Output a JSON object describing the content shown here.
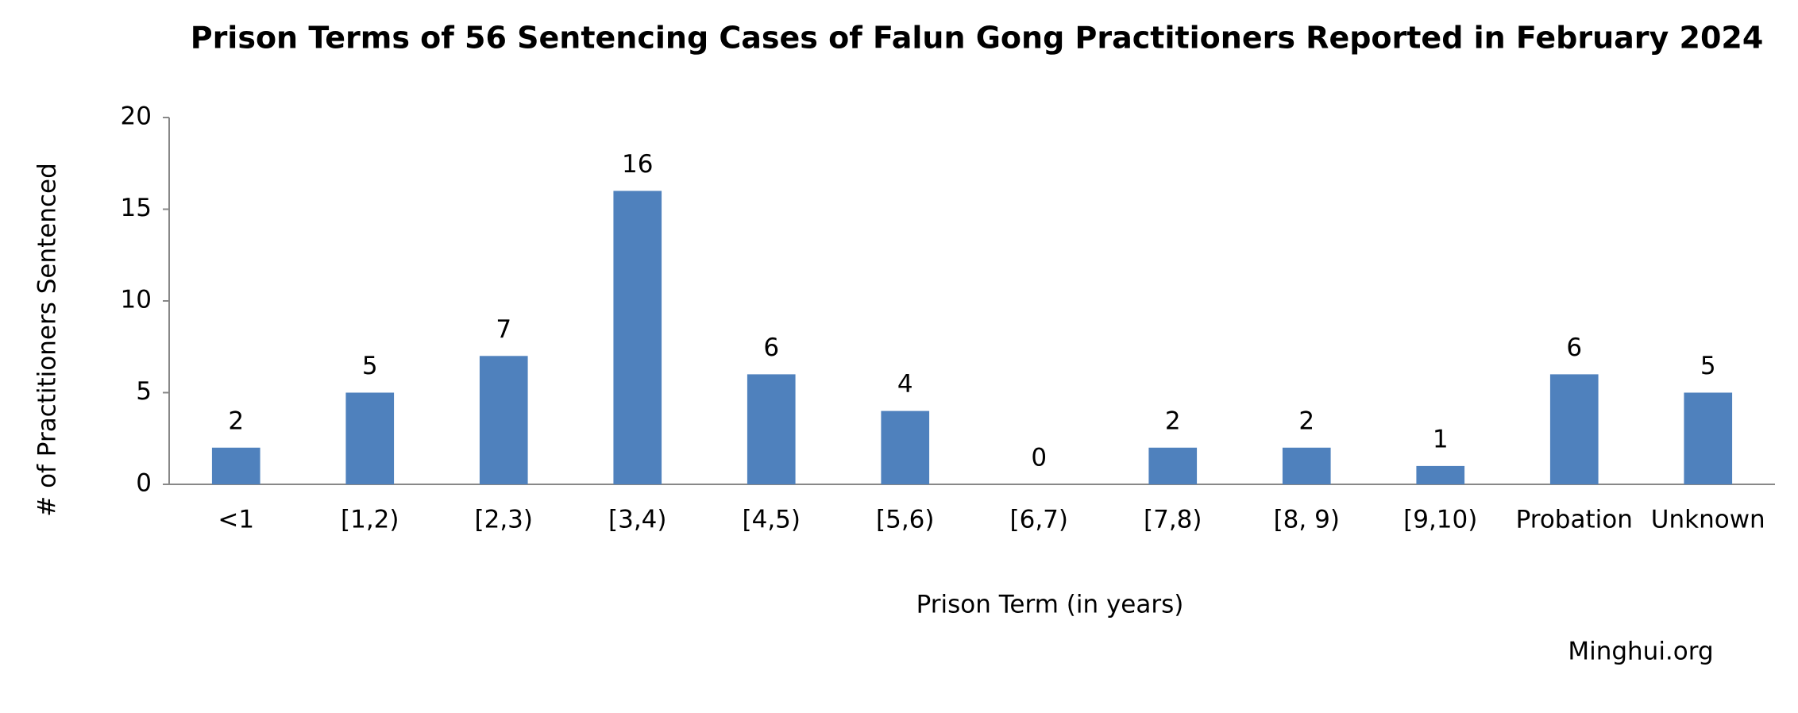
{
  "chart_data": {
    "type": "bar",
    "title": "Prison Terms of 56 Sentencing Cases of Falun Gong Practitioners Reported in February 2024",
    "x_label": "Prison Term (in years)",
    "y_label": "# of Practitioners Sentenced",
    "source": "Minghui.org",
    "categories": [
      "<1",
      "[1,2)",
      "[2,3)",
      "[3,4)",
      "[4,5)",
      "[5,6)",
      "[6,7)",
      "[7,8)",
      "[8, 9)",
      "[9,10)",
      "Probation",
      "Unknown"
    ],
    "values": [
      2,
      5,
      7,
      16,
      6,
      4,
      0,
      2,
      2,
      1,
      6,
      5
    ],
    "color": "#4f81bd",
    "ylim": [
      0,
      20
    ],
    "yticks": [
      0,
      5,
      10,
      15,
      20
    ],
    "grid": false
  }
}
